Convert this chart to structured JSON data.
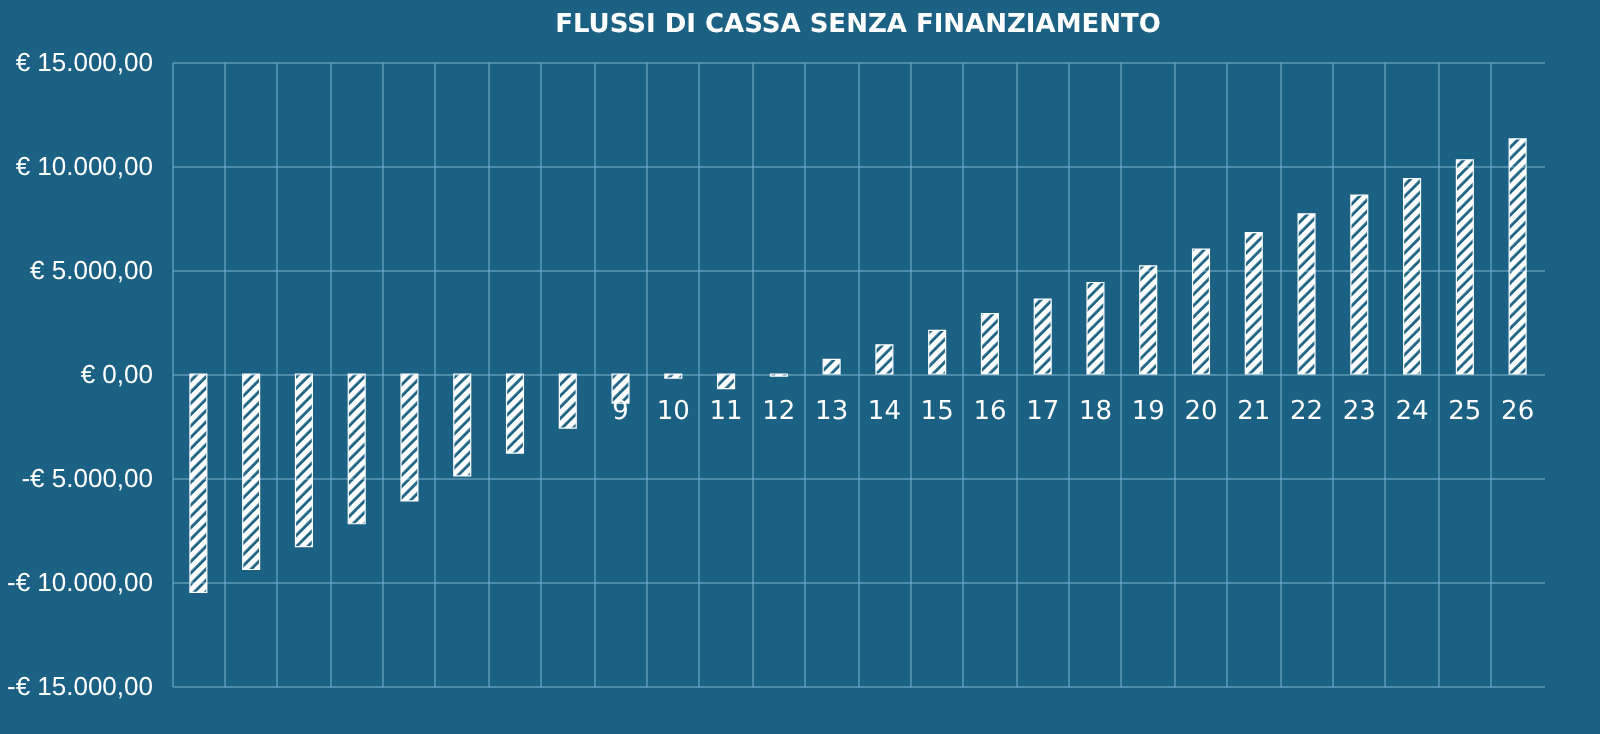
{
  "chart_data": {
    "type": "bar",
    "title": "FLUSSI DI CASSA SENZA FINANZIAMENTO",
    "categories": [
      null,
      null,
      null,
      null,
      null,
      null,
      null,
      null,
      "9",
      "10",
      "11",
      "12",
      "13",
      "14",
      "15",
      "16",
      "17",
      "18",
      "19",
      "20",
      "21",
      "22",
      "23",
      "24",
      "25",
      "26"
    ],
    "values": [
      -10500,
      -9400,
      -8300,
      -7200,
      -6100,
      -4900,
      -3800,
      -2600,
      -1400,
      -200,
      -700,
      -100,
      700,
      1400,
      2100,
      2900,
      3600,
      4400,
      5200,
      6000,
      6800,
      7700,
      8600,
      9400,
      10300,
      11300
    ],
    "color": "#ffffff",
    "ylim": [
      -15000,
      15000
    ],
    "yticks": [
      {
        "value": -15000,
        "label": "-€ 15.000,00"
      },
      {
        "value": -10000,
        "label": "-€ 10.000,00"
      },
      {
        "value": -5000,
        "label": "-€ 5.000,00"
      },
      {
        "value": 0,
        "label": "€ 0,00"
      },
      {
        "value": 5000,
        "label": "€ 5.000,00"
      },
      {
        "value": 10000,
        "label": "€ 10.000,00"
      },
      {
        "value": 15000,
        "label": "€ 15.000,00"
      }
    ],
    "grid": true
  }
}
